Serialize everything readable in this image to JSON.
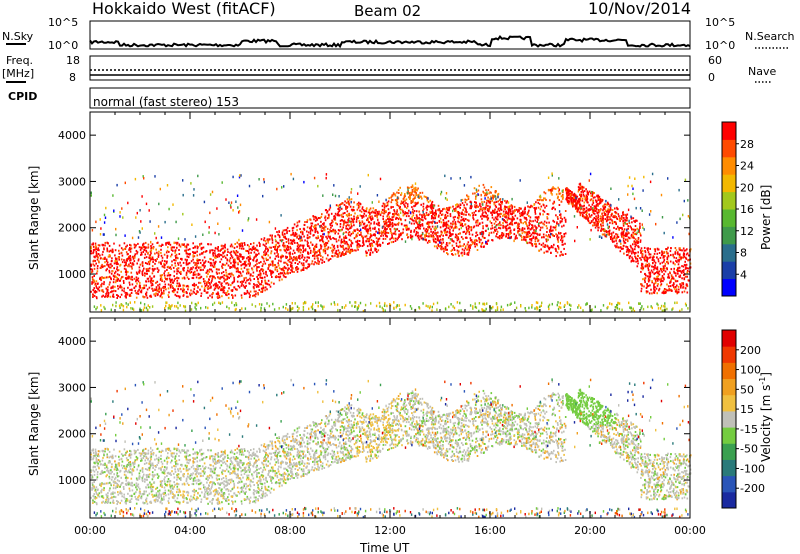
{
  "header": {
    "station": "Hokkaido West (fitACF)",
    "beam": "Beam 02",
    "date": "10/Nov/2014"
  },
  "top_strip": {
    "nsky": {
      "label": "N.Sky",
      "ticks": [
        "10^5",
        "10^0"
      ]
    },
    "nsearch": {
      "label": "N.Search",
      "ticks": [
        "10^5",
        "10^0"
      ]
    },
    "freq": {
      "label1": "Freq.",
      "label2": "[MHz]",
      "ticks": [
        "18",
        "8"
      ]
    },
    "nave": {
      "label": "Nave",
      "ticks": [
        "60",
        "0"
      ]
    },
    "cpid": {
      "label": "CPID",
      "text": "normal (fast stereo) 153"
    }
  },
  "chart_data": [
    {
      "type": "heatmap",
      "name": "power",
      "ylabel": "Slant Range [km]",
      "yticks": [
        "1000",
        "2000",
        "3000",
        "4000"
      ],
      "ylim": [
        180,
        4500
      ],
      "xlim": [
        0,
        24
      ],
      "xticks": [
        "00:00",
        "04:00",
        "08:00",
        "12:00",
        "16:00",
        "20:00",
        "00:00"
      ],
      "colorbar": {
        "label": "Power [dB]",
        "ticks": [
          "4",
          "8",
          "12",
          "16",
          "20",
          "24",
          "28"
        ],
        "colors": [
          "#0000ff",
          "#1b3fa8",
          "#2a6e8c",
          "#3f9a4a",
          "#58b830",
          "#a2c81c",
          "#f3b800",
          "#ff8c00",
          "#ff4a00",
          "#ff0000"
        ]
      }
    },
    {
      "type": "heatmap",
      "name": "velocity",
      "ylabel": "Slant Range [km]",
      "yticks": [
        "1000",
        "2000",
        "3000",
        "4000"
      ],
      "ylim": [
        180,
        4500
      ],
      "xlim": [
        0,
        24
      ],
      "xticks": [
        "00:00",
        "04:00",
        "08:00",
        "12:00",
        "16:00",
        "20:00",
        "00:00"
      ],
      "xlabel": "Time UT",
      "colorbar": {
        "label": "Velocity [m s",
        "label_sup": "-1",
        "label_end": "]",
        "ticks": [
          "200",
          "100",
          "50",
          "15",
          "-15",
          "-50",
          "-100",
          "-200"
        ],
        "colors": [
          "#1a2aa0",
          "#2a55b8",
          "#2a7a7a",
          "#3aa050",
          "#74cc40",
          "#c0c0b8",
          "#f0c040",
          "#f0a020",
          "#f07000",
          "#f03800",
          "#e00000"
        ]
      }
    }
  ]
}
